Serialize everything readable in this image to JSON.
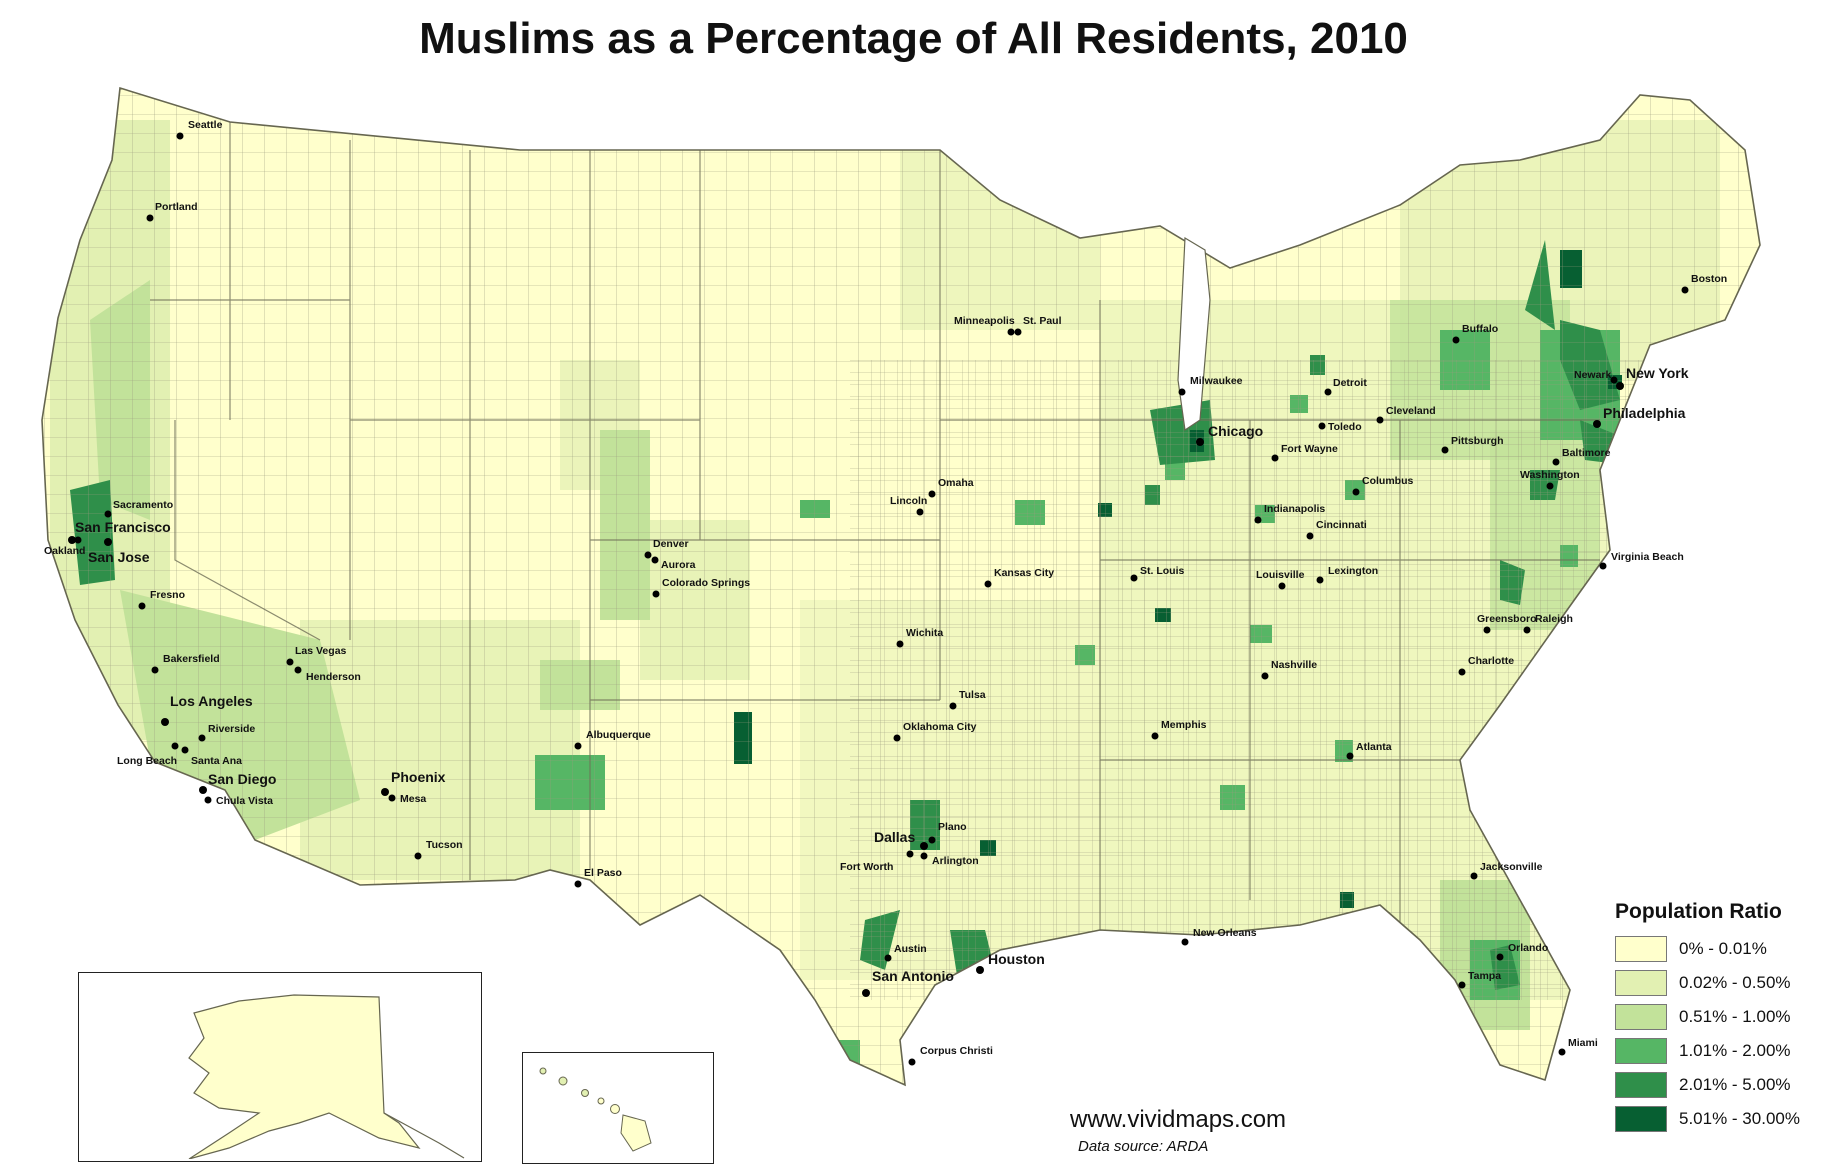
{
  "title": "Muslims as a Percentage of All Residents, 2010",
  "colors": {
    "bin0": "#ffffcc",
    "bin1": "#e2f0b2",
    "bin2": "#c2e29a",
    "bin3": "#56b665",
    "bin4": "#2f8f4a",
    "bin5": "#075f32",
    "border": "#8a8a70",
    "outline": "#666650"
  },
  "legend": {
    "title": "Population Ratio",
    "items": [
      {
        "label": "0% - 0.01%",
        "color": "#ffffcc"
      },
      {
        "label": "0.02% - 0.50%",
        "color": "#e2f0b2"
      },
      {
        "label": "0.51% - 1.00%",
        "color": "#c2e29a"
      },
      {
        "label": "1.01% - 2.00%",
        "color": "#56b665"
      },
      {
        "label": "2.01% - 5.00%",
        "color": "#2f8f4a"
      },
      {
        "label": "5.01% - 30.00%",
        "color": "#075f32"
      }
    ]
  },
  "cities": [
    {
      "name": "Seattle",
      "major": false
    },
    {
      "name": "Portland",
      "major": false
    },
    {
      "name": "Sacramento",
      "major": false
    },
    {
      "name": "San Francisco",
      "major": true
    },
    {
      "name": "Oakland",
      "major": false
    },
    {
      "name": "San Jose",
      "major": true
    },
    {
      "name": "Fresno",
      "major": false
    },
    {
      "name": "Bakersfield",
      "major": false
    },
    {
      "name": "Las Vegas",
      "major": false
    },
    {
      "name": "Henderson",
      "major": false
    },
    {
      "name": "Los Angeles",
      "major": true
    },
    {
      "name": "Riverside",
      "major": false
    },
    {
      "name": "Long Beach",
      "major": false
    },
    {
      "name": "Santa Ana",
      "major": false
    },
    {
      "name": "San Diego",
      "major": true
    },
    {
      "name": "Chula Vista",
      "major": false
    },
    {
      "name": "Phoenix",
      "major": true
    },
    {
      "name": "Mesa",
      "major": false
    },
    {
      "name": "Tucson",
      "major": false
    },
    {
      "name": "Albuquerque",
      "major": false
    },
    {
      "name": "El Paso",
      "major": false
    },
    {
      "name": "Denver",
      "major": false
    },
    {
      "name": "Aurora",
      "major": false
    },
    {
      "name": "Colorado Springs",
      "major": false
    },
    {
      "name": "Minneapolis",
      "major": false
    },
    {
      "name": "St. Paul",
      "major": false
    },
    {
      "name": "Omaha",
      "major": false
    },
    {
      "name": "Lincoln",
      "major": false
    },
    {
      "name": "Kansas City",
      "major": false
    },
    {
      "name": "Wichita",
      "major": false
    },
    {
      "name": "Tulsa",
      "major": false
    },
    {
      "name": "Oklahoma City",
      "major": false
    },
    {
      "name": "Dallas",
      "major": true
    },
    {
      "name": "Plano",
      "major": false
    },
    {
      "name": "Fort Worth",
      "major": false
    },
    {
      "name": "Arlington",
      "major": false
    },
    {
      "name": "Austin",
      "major": false
    },
    {
      "name": "San Antonio",
      "major": true
    },
    {
      "name": "Houston",
      "major": true
    },
    {
      "name": "Corpus Christi",
      "major": false
    },
    {
      "name": "Milwaukee",
      "major": false
    },
    {
      "name": "Chicago",
      "major": true
    },
    {
      "name": "St. Louis",
      "major": false
    },
    {
      "name": "Memphis",
      "major": false
    },
    {
      "name": "New Orleans",
      "major": false
    },
    {
      "name": "Nashville",
      "major": false
    },
    {
      "name": "Louisville",
      "major": false
    },
    {
      "name": "Lexington",
      "major": false
    },
    {
      "name": "Indianapolis",
      "major": false
    },
    {
      "name": "Cincinnati",
      "major": false
    },
    {
      "name": "Fort Wayne",
      "major": false
    },
    {
      "name": "Detroit",
      "major": false
    },
    {
      "name": "Toledo",
      "major": false
    },
    {
      "name": "Cleveland",
      "major": false
    },
    {
      "name": "Columbus",
      "major": false
    },
    {
      "name": "Pittsburgh",
      "major": false
    },
    {
      "name": "Buffalo",
      "major": false
    },
    {
      "name": "Boston",
      "major": false
    },
    {
      "name": "Newark",
      "major": false
    },
    {
      "name": "New York",
      "major": true
    },
    {
      "name": "Philadelphia",
      "major": true
    },
    {
      "name": "Baltimore",
      "major": false
    },
    {
      "name": "Washington",
      "major": false
    },
    {
      "name": "Virginia Beach",
      "major": false
    },
    {
      "name": "Greensboro",
      "major": false
    },
    {
      "name": "Raleigh",
      "major": false
    },
    {
      "name": "Charlotte",
      "major": false
    },
    {
      "name": "Atlanta",
      "major": false
    },
    {
      "name": "Jacksonville",
      "major": false
    },
    {
      "name": "Orlando",
      "major": false
    },
    {
      "name": "Tampa",
      "major": false
    },
    {
      "name": "Miami",
      "major": false
    }
  ],
  "website": "www.vividmaps.com",
  "source": "Data source: ARDA"
}
